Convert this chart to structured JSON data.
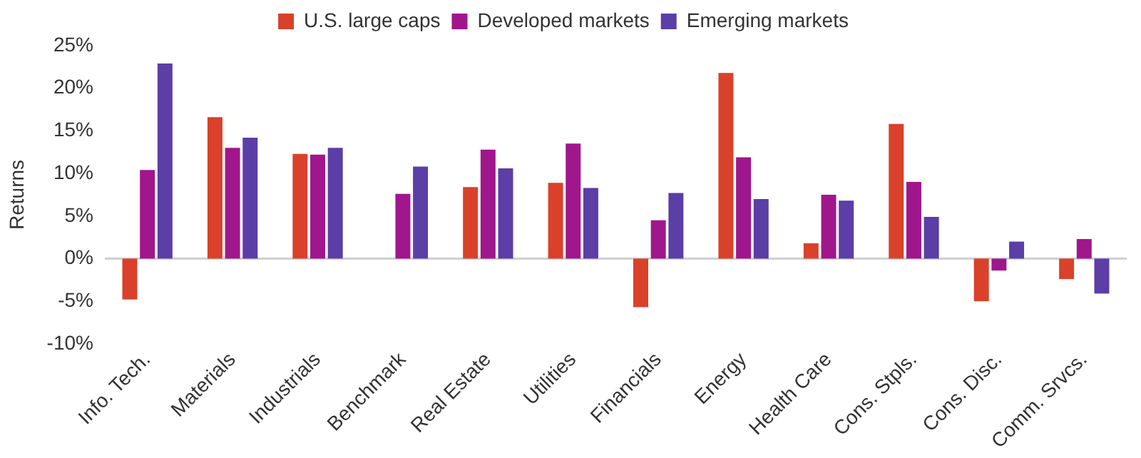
{
  "chart_data": {
    "type": "bar",
    "ylabel": "Returns",
    "categories": [
      "Info. Tech.",
      "Materials",
      "Industrials",
      "Benchmark",
      "Real Estate",
      "Utilities",
      "Financials",
      "Energy",
      "Health Care",
      "Cons. Stpls.",
      "Cons. Disc.",
      "Comm. Srvcs."
    ],
    "series": [
      {
        "name": "U.S. large caps",
        "color": "#d9412a",
        "values": [
          -4.8,
          16.6,
          12.3,
          null,
          8.4,
          8.9,
          -5.7,
          21.8,
          1.8,
          15.8,
          -5.0,
          -2.4
        ]
      },
      {
        "name": "Developed markets",
        "color": "#a0168c",
        "values": [
          10.4,
          13.0,
          12.2,
          7.6,
          12.8,
          13.5,
          4.5,
          11.9,
          7.5,
          9.0,
          -1.4,
          2.3
        ]
      },
      {
        "name": "Emerging markets",
        "color": "#5b3ea6",
        "values": [
          22.9,
          14.2,
          13.0,
          10.8,
          10.6,
          8.3,
          7.7,
          7.0,
          6.8,
          4.9,
          2.0,
          -4.1
        ]
      }
    ],
    "ylim": [
      -10,
      25
    ],
    "yticks": [
      {
        "value": -10,
        "label": "-10%"
      },
      {
        "value": -5,
        "label": "-5%"
      },
      {
        "value": 0,
        "label": "0%"
      },
      {
        "value": 5,
        "label": "5%"
      },
      {
        "value": 10,
        "label": "10%"
      },
      {
        "value": 15,
        "label": "15%"
      },
      {
        "value": 20,
        "label": "20%"
      },
      {
        "value": 25,
        "label": "25%"
      }
    ],
    "ref_lines": [
      {
        "axis": "y",
        "value": 0,
        "color": "#d0d0d0"
      }
    ],
    "grid": false,
    "legend": "top"
  }
}
